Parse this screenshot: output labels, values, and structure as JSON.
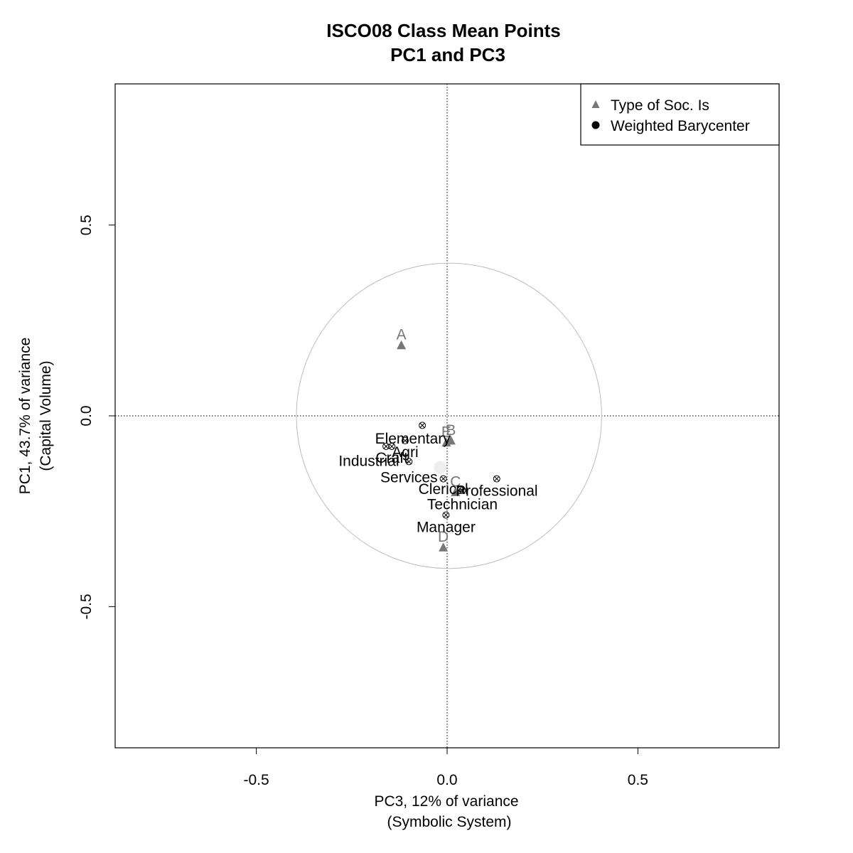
{
  "chart_data": {
    "type": "scatter",
    "title": "ISCO08 Class Mean Points",
    "subtitle": "PC1 and PC3",
    "xlabel": "PC3, 12% of variance",
    "xlabel2": "(Symbolic System)",
    "ylabel": "PC1, 43.7% of variance",
    "ylabel2": "(Capital Volume)",
    "xlim": [
      -0.87,
      0.87
    ],
    "ylim": [
      -0.87,
      0.87
    ],
    "x_ticks": [
      -0.5,
      0.0,
      0.5
    ],
    "x_tick_labels": [
      "-0.5",
      "0.0",
      "0.5"
    ],
    "y_ticks": [
      -0.5,
      0.0,
      0.5
    ],
    "y_tick_labels": [
      "-0.5",
      "0.0",
      "0.5"
    ],
    "reference_lines": {
      "x": 0,
      "y": 0
    },
    "circle": {
      "center": [
        0.005,
        0.0
      ],
      "radius": 0.4
    },
    "legend": {
      "position": "top-right",
      "entries": [
        {
          "label": "Type of Soc. Is",
          "symbol": "triangle",
          "color": "#777777"
        },
        {
          "label": "Weighted Barycenter",
          "symbol": "circle",
          "color": "#000000"
        }
      ]
    },
    "barycenter": {
      "x": -0.018,
      "y": -0.135,
      "color": "#eeeeee"
    },
    "categories": [
      {
        "label": "Elementary",
        "x": -0.065,
        "y": -0.025,
        "lx": -0.09,
        "ly": -0.06
      },
      {
        "label": "Agri",
        "x": -0.11,
        "y": -0.065,
        "lx": -0.11,
        "ly": -0.095
      },
      {
        "label": "Craft",
        "x": -0.145,
        "y": -0.08,
        "lx": -0.145,
        "ly": -0.11
      },
      {
        "label": "Industrial",
        "x": -0.16,
        "y": -0.08,
        "lx": -0.205,
        "ly": -0.118
      },
      {
        "label": "Services",
        "x": -0.1,
        "y": -0.12,
        "lx": -0.1,
        "ly": -0.161
      },
      {
        "label": "Clerical",
        "x": -0.01,
        "y": -0.165,
        "lx": -0.01,
        "ly": -0.192
      },
      {
        "label": "Professional",
        "x": 0.13,
        "y": -0.165,
        "lx": 0.13,
        "ly": -0.197
      },
      {
        "label": "Technician",
        "x": 0.04,
        "y": -0.195,
        "lx": 0.04,
        "ly": -0.232
      },
      {
        "label": "Manager",
        "x": -0.003,
        "y": -0.26,
        "lx": -0.003,
        "ly": -0.292
      }
    ],
    "types": [
      {
        "label": "A",
        "x": -0.12,
        "y": 0.185
      },
      {
        "label": "B",
        "x": 0.01,
        "y": -0.065
      },
      {
        "label": "C",
        "x": 0.022,
        "y": -0.2
      },
      {
        "label": "D",
        "x": -0.01,
        "y": -0.345
      },
      {
        "label": "E",
        "x": -0.002,
        "y": -0.07
      }
    ]
  }
}
